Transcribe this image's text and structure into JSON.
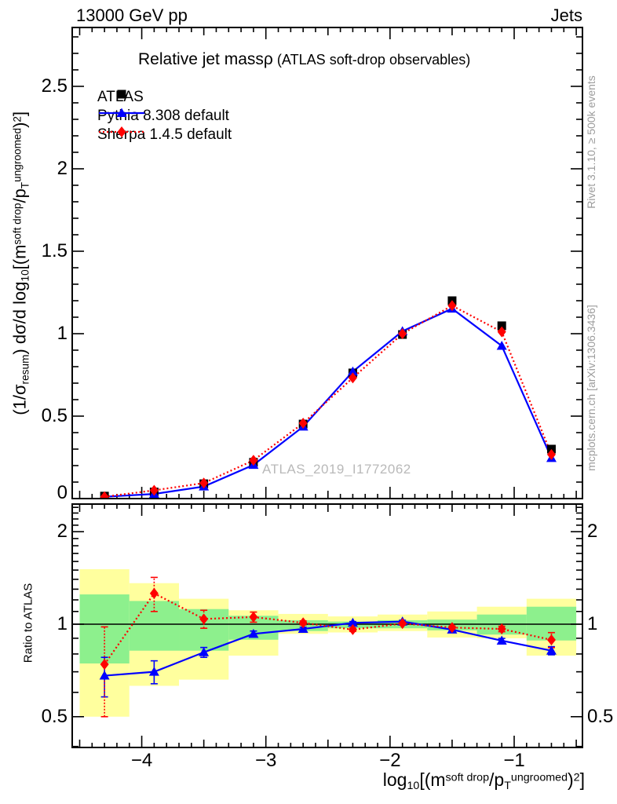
{
  "header": {
    "left": "13000 GeV pp",
    "right": "Jets"
  },
  "title_segments": [
    {
      "t": "Relative jet mass"
    },
    {
      "t": "ρ"
    },
    {
      "t": " (ATLAS soft-drop observables)",
      "s": "small"
    }
  ],
  "legend": {
    "items": [
      {
        "label": "ATLAS",
        "marker": "square",
        "color": "#000000",
        "line": "none"
      },
      {
        "label": "Pythia 8.308 default",
        "marker": "triangle",
        "color": "#0000ff",
        "line": "solid"
      },
      {
        "label": "Sherpa 1.4.5 default",
        "marker": "diamond",
        "color": "#ff0000",
        "line": "dotted"
      }
    ]
  },
  "watermark": "ATLAS_2019_I1772062",
  "side_notes": {
    "top": "Rivet 3.1.10, ≥ 500k events",
    "bottom": "mcplots.cern.ch [arXiv:1306.3436]"
  },
  "axis_titles": {
    "y_segments": [
      {
        "t": "(1/σ"
      },
      {
        "t": "resum",
        "s": "sub"
      },
      {
        "t": ") dσ/d log"
      },
      {
        "t": "10",
        "s": "sub"
      },
      {
        "t": "[(m"
      },
      {
        "t": "soft drop",
        "s": "sup"
      },
      {
        "t": "/p"
      },
      {
        "t": "T",
        "s": "sub"
      },
      {
        "t": "ungroomed",
        "s": "sup"
      },
      {
        "t": ")"
      },
      {
        "t": "2",
        "s": "sup"
      },
      {
        "t": "]"
      }
    ],
    "x_segments": [
      {
        "t": "log"
      },
      {
        "t": "10",
        "s": "sub"
      },
      {
        "t": "[(m"
      },
      {
        "t": "soft drop",
        "s": "sup"
      },
      {
        "t": "/p"
      },
      {
        "t": "T",
        "s": "sub"
      },
      {
        "t": "ungroomed",
        "s": "sup"
      },
      {
        "t": ")"
      },
      {
        "t": "2",
        "s": "sup"
      },
      {
        "t": "]"
      }
    ]
  },
  "colors": {
    "data": "#000000",
    "pythia": "#0000ff",
    "sherpa": "#ff0000",
    "band_yellow": "#ffff9e",
    "band_green": "#8df08d",
    "gray_text": "#9c9c9c",
    "watermark": "#b9b9b9"
  },
  "chart_data": {
    "type": "line",
    "title": "Relative jet mass ρ (ATLAS soft-drop observables)",
    "xlabel": "log10[(m^soft drop / pT^ungroomed)^2]",
    "ylabel": "(1/σ_resum) dσ/d log10[(m^soft drop / pT^ungroomed)^2]",
    "x_range": [
      -4.56,
      -0.45
    ],
    "y_main_range": [
      0,
      2.857
    ],
    "ratio_range": [
      0.397,
      2.46
    ],
    "x_bin_centers": [
      -4.3,
      -3.9,
      -3.5,
      -3.1,
      -2.7,
      -2.3,
      -1.9,
      -1.5,
      -1.1,
      -0.7
    ],
    "x_bin_edges": [
      -4.5,
      -4.1,
      -3.7,
      -3.3,
      -2.9,
      -2.5,
      -2.1,
      -1.7,
      -1.3,
      -0.9,
      -0.5
    ],
    "series": [
      {
        "name": "ATLAS",
        "marker": "square",
        "color": "#000000",
        "line": "none",
        "values": [
          0.015,
          0.04,
          0.09,
          0.22,
          0.452,
          0.762,
          0.995,
          1.2,
          1.048,
          0.3
        ],
        "errors": [
          0.004,
          0.005,
          0.007,
          0.01,
          0.012,
          0.014,
          0.015,
          0.02,
          0.018,
          0.012
        ]
      },
      {
        "name": "Pythia 8.308 default",
        "marker": "triangle",
        "color": "#0000ff",
        "line": "solid",
        "values": [
          0.011,
          0.028,
          0.073,
          0.204,
          0.436,
          0.77,
          1.015,
          1.152,
          0.926,
          0.246
        ]
      },
      {
        "name": "Sherpa 1.4.5 default",
        "marker": "diamond",
        "color": "#ff0000",
        "line": "dotted",
        "values": [
          0.011,
          0.05,
          0.094,
          0.232,
          0.457,
          0.732,
          1.0,
          1.17,
          1.011,
          0.267
        ]
      }
    ],
    "ratio": {
      "ylabel": "Ratio to ATLAS",
      "baseline": 1,
      "series": [
        {
          "name": "Pythia 8.308 default",
          "color": "#0000ff",
          "marker": "triangle",
          "line": "solid",
          "values": [
            0.68,
            0.7,
            0.81,
            0.93,
            0.965,
            1.01,
            1.02,
            0.96,
            0.884,
            0.82
          ],
          "err": [
            0.1,
            0.06,
            0.03,
            0.02,
            0.012,
            0.01,
            0.01,
            0.01,
            0.015,
            0.025
          ]
        },
        {
          "name": "Sherpa 1.4.5 default",
          "color": "#ff0000",
          "marker": "diamond",
          "line": "dotted",
          "values": [
            0.74,
            1.26,
            1.04,
            1.055,
            1.01,
            0.96,
            1.005,
            0.975,
            0.965,
            0.889
          ],
          "err": [
            0.24,
            0.16,
            0.07,
            0.04,
            0.015,
            0.012,
            0.012,
            0.012,
            0.02,
            0.05
          ]
        }
      ],
      "bands": {
        "yellow": [
          [
            0.5,
            1.51
          ],
          [
            0.63,
            1.36
          ],
          [
            0.66,
            1.21
          ],
          [
            0.79,
            1.11
          ],
          [
            0.93,
            1.08
          ],
          [
            0.94,
            1.06
          ],
          [
            0.95,
            1.075
          ],
          [
            0.905,
            1.1
          ],
          [
            0.9,
            1.14
          ],
          [
            0.79,
            1.21
          ]
        ],
        "green": [
          [
            0.745,
            1.25
          ],
          [
            0.82,
            1.19
          ],
          [
            0.82,
            1.12
          ],
          [
            0.89,
            1.065
          ],
          [
            0.95,
            1.03
          ],
          [
            0.97,
            1.02
          ],
          [
            0.97,
            1.03
          ],
          [
            0.955,
            1.035
          ],
          [
            0.925,
            1.075
          ],
          [
            0.885,
            1.14
          ]
        ]
      }
    },
    "axes": {
      "x_major": [
        {
          "v": -4,
          "t": "−4"
        },
        {
          "v": -3,
          "t": "−3"
        },
        {
          "v": -2,
          "t": "−2"
        },
        {
          "v": -1,
          "t": "−1"
        }
      ],
      "y_main_major": [
        {
          "v": 0,
          "t": "0"
        },
        {
          "v": 0.5,
          "t": "0.5"
        },
        {
          "v": 1,
          "t": "1"
        },
        {
          "v": 1.5,
          "t": "1.5"
        },
        {
          "v": 2,
          "t": "2"
        },
        {
          "v": 2.5,
          "t": "2.5"
        }
      ],
      "y_ratio_major": [
        {
          "v": 0.5,
          "t": "0.5"
        },
        {
          "v": 1,
          "t": "1"
        },
        {
          "v": 2,
          "t": "2"
        }
      ]
    }
  }
}
